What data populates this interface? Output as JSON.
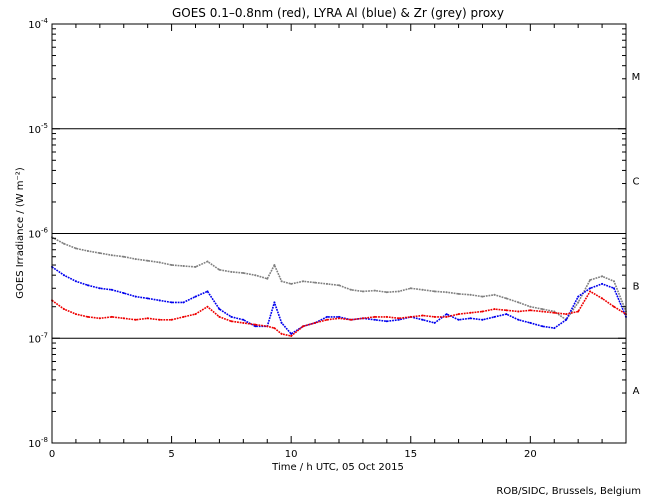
{
  "chart_data": {
    "type": "line",
    "title": "GOES 0.1–0.8nm (red), LYRA Al (blue) & Zr (grey) proxy",
    "xlabel": "Time / h UTC, 05 Oct 2015",
    "ylabel": "GOES Irradiance / (W m⁻²)",
    "xlim": [
      0,
      24
    ],
    "ylim": [
      1e-08,
      0.0001
    ],
    "yscale": "log",
    "grid": false,
    "xticks": [
      {
        "value": 0,
        "label": "0"
      },
      {
        "value": 5,
        "label": "5"
      },
      {
        "value": 10,
        "label": "10"
      },
      {
        "value": 15,
        "label": "15"
      },
      {
        "value": 20,
        "label": "20"
      }
    ],
    "yticks": [
      {
        "value": 1e-08,
        "base": "10",
        "exp": "-8"
      },
      {
        "value": 1e-07,
        "base": "10",
        "exp": "-7"
      },
      {
        "value": 1e-06,
        "base": "10",
        "exp": "-6"
      },
      {
        "value": 1e-05,
        "base": "10",
        "exp": "-5"
      },
      {
        "value": 0.0001,
        "base": "10",
        "exp": "-4"
      }
    ],
    "class_lines": [
      1e-07,
      1e-06,
      1e-05
    ],
    "flare_classes": [
      {
        "label": "A",
        "value": 3.2e-08
      },
      {
        "label": "B",
        "value": 3.2e-07
      },
      {
        "label": "C",
        "value": 3.2e-06
      },
      {
        "label": "M",
        "value": 3.2e-05
      }
    ],
    "series": [
      {
        "color": "#808080",
        "x": [
          0,
          0.5,
          1,
          1.5,
          2,
          2.5,
          3,
          3.5,
          4,
          4.5,
          5,
          5.5,
          6,
          6.5,
          7,
          7.5,
          8,
          8.5,
          9,
          9.3,
          9.6,
          10,
          10.5,
          11,
          11.5,
          12,
          12.5,
          13,
          13.5,
          14,
          14.5,
          15,
          15.5,
          16,
          16.5,
          17,
          17.5,
          18,
          18.5,
          19,
          19.5,
          20,
          20.5,
          21,
          21.5,
          22,
          22.5,
          23,
          23.5,
          24
        ],
        "y": [
          9.2e-07,
          8e-07,
          7.2e-07,
          6.8e-07,
          6.5e-07,
          6.2e-07,
          6e-07,
          5.7e-07,
          5.5e-07,
          5.3e-07,
          5e-07,
          4.9e-07,
          4.8e-07,
          5.4e-07,
          4.5e-07,
          4.3e-07,
          4.2e-07,
          4e-07,
          3.7e-07,
          5e-07,
          3.5e-07,
          3.3e-07,
          3.5e-07,
          3.4e-07,
          3.3e-07,
          3.2e-07,
          2.9e-07,
          2.8e-07,
          2.85e-07,
          2.75e-07,
          2.8e-07,
          3e-07,
          2.9e-07,
          2.8e-07,
          2.75e-07,
          2.65e-07,
          2.6e-07,
          2.5e-07,
          2.6e-07,
          2.4e-07,
          2.2e-07,
          2e-07,
          1.9e-07,
          1.8e-07,
          1.5e-07,
          2.2e-07,
          3.6e-07,
          3.9e-07,
          3.5e-07,
          1.8e-07
        ]
      },
      {
        "color": "#0000ee",
        "x": [
          0,
          0.5,
          1,
          1.5,
          2,
          2.5,
          3,
          3.5,
          4,
          4.5,
          5,
          5.5,
          6,
          6.5,
          7,
          7.5,
          8,
          8.5,
          9,
          9.3,
          9.6,
          10,
          10.5,
          11,
          11.5,
          12,
          12.5,
          13,
          13.5,
          14,
          14.5,
          15,
          15.5,
          16,
          16.5,
          17,
          17.5,
          18,
          18.5,
          19,
          19.5,
          20,
          20.5,
          21,
          21.5,
          22,
          22.5,
          23,
          23.5,
          24
        ],
        "y": [
          4.8e-07,
          4e-07,
          3.5e-07,
          3.2e-07,
          3e-07,
          2.9e-07,
          2.7e-07,
          2.5e-07,
          2.4e-07,
          2.3e-07,
          2.2e-07,
          2.2e-07,
          2.5e-07,
          2.8e-07,
          1.9e-07,
          1.6e-07,
          1.5e-07,
          1.3e-07,
          1.3e-07,
          2.2e-07,
          1.4e-07,
          1.1e-07,
          1.3e-07,
          1.4e-07,
          1.6e-07,
          1.6e-07,
          1.5e-07,
          1.55e-07,
          1.5e-07,
          1.45e-07,
          1.5e-07,
          1.6e-07,
          1.5e-07,
          1.4e-07,
          1.7e-07,
          1.5e-07,
          1.55e-07,
          1.5e-07,
          1.6e-07,
          1.7e-07,
          1.5e-07,
          1.4e-07,
          1.3e-07,
          1.25e-07,
          1.5e-07,
          2.5e-07,
          3e-07,
          3.3e-07,
          3e-07,
          1.6e-07
        ]
      },
      {
        "color": "#ee0000",
        "x": [
          0,
          0.5,
          1,
          1.5,
          2,
          2.5,
          3,
          3.5,
          4,
          4.5,
          5,
          5.5,
          6,
          6.5,
          7,
          7.5,
          8,
          8.5,
          9,
          9.3,
          9.6,
          10,
          10.5,
          11,
          11.5,
          12,
          12.5,
          13,
          13.5,
          14,
          14.5,
          15,
          15.5,
          16,
          16.5,
          17,
          17.5,
          18,
          18.5,
          19,
          19.5,
          20,
          20.5,
          21,
          21.5,
          22,
          22.5,
          23,
          23.5,
          24
        ],
        "y": [
          2.3e-07,
          1.9e-07,
          1.7e-07,
          1.6e-07,
          1.55e-07,
          1.6e-07,
          1.55e-07,
          1.5e-07,
          1.55e-07,
          1.5e-07,
          1.5e-07,
          1.6e-07,
          1.7e-07,
          2e-07,
          1.6e-07,
          1.45e-07,
          1.4e-07,
          1.35e-07,
          1.3e-07,
          1.25e-07,
          1.1e-07,
          1.05e-07,
          1.3e-07,
          1.4e-07,
          1.5e-07,
          1.55e-07,
          1.5e-07,
          1.55e-07,
          1.6e-07,
          1.6e-07,
          1.55e-07,
          1.6e-07,
          1.65e-07,
          1.6e-07,
          1.6e-07,
          1.7e-07,
          1.75e-07,
          1.8e-07,
          1.9e-07,
          1.85e-07,
          1.8e-07,
          1.85e-07,
          1.8e-07,
          1.75e-07,
          1.7e-07,
          1.8e-07,
          2.8e-07,
          2.4e-07,
          2e-07,
          1.7e-07
        ]
      }
    ]
  },
  "footer": {
    "credit": "ROB/SIDC, Brussels, Belgium"
  }
}
